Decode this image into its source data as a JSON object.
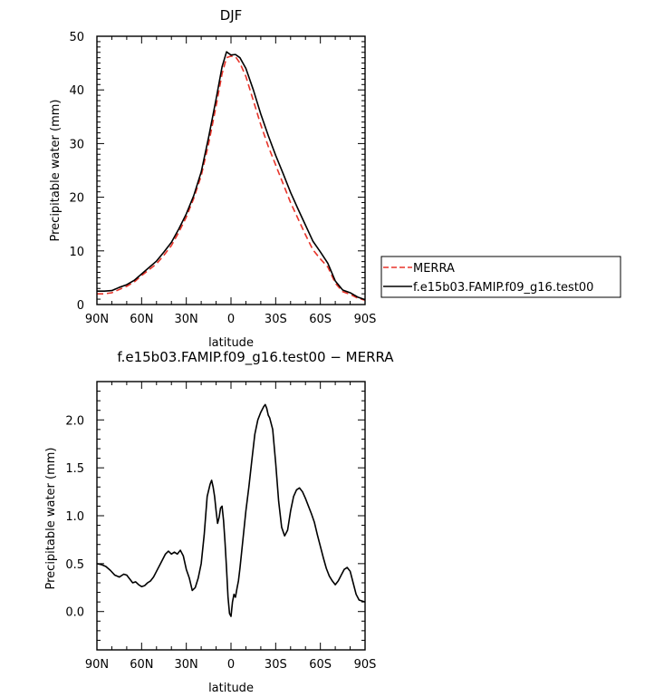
{
  "chart_data": [
    {
      "type": "line",
      "title": "DJF",
      "xlabel": "latitude",
      "ylabel": "Precipitable water (mm)",
      "x_ticks": [
        "90N",
        "60N",
        "30N",
        "0",
        "30S",
        "60S",
        "90S"
      ],
      "y_ticks": [
        "0",
        "10",
        "20",
        "30",
        "40",
        "50"
      ],
      "xlim": [
        90,
        -90
      ],
      "ylim": [
        0,
        50
      ],
      "legend_position": "right",
      "series": [
        {
          "name": "MERRA",
          "color": "#e8342a",
          "dash": "dashed",
          "x": [
            90,
            85,
            80,
            75,
            70,
            65,
            60,
            55,
            50,
            45,
            40,
            35,
            30,
            25,
            20,
            15,
            10,
            6,
            3,
            0,
            -3,
            -6,
            -10,
            -15,
            -20,
            -25,
            -30,
            -35,
            -40,
            -45,
            -50,
            -55,
            -60,
            -65,
            -70,
            -75,
            -80,
            -85,
            -90
          ],
          "y": [
            2.0,
            2.0,
            2.2,
            2.8,
            3.4,
            4.2,
            5.4,
            6.5,
            7.6,
            9.2,
            11.0,
            13.5,
            16.3,
            19.8,
            24.0,
            30.0,
            37.0,
            43.0,
            46.0,
            46.3,
            46.2,
            45.0,
            42.5,
            38.0,
            33.5,
            29.5,
            26.0,
            22.5,
            19.0,
            16.0,
            13.0,
            10.2,
            8.5,
            7.0,
            4.0,
            2.4,
            1.9,
            1.2,
            0.8
          ]
        },
        {
          "name": "f.e15b03.FAMIP.f09_g16.test00",
          "color": "#000000",
          "dash": "solid",
          "x": [
            90,
            85,
            80,
            75,
            70,
            65,
            60,
            55,
            50,
            45,
            40,
            35,
            30,
            25,
            20,
            15,
            10,
            6,
            3,
            0,
            -3,
            -6,
            -10,
            -15,
            -20,
            -25,
            -30,
            -35,
            -40,
            -45,
            -50,
            -55,
            -60,
            -65,
            -70,
            -75,
            -80,
            -85,
            -90
          ],
          "y": [
            2.5,
            2.5,
            2.6,
            3.2,
            3.7,
            4.5,
            5.7,
            6.9,
            8.1,
            9.8,
            11.6,
            14.1,
            16.9,
            20.3,
            24.7,
            31.2,
            38.3,
            44.3,
            47.1,
            46.5,
            46.6,
            46.0,
            44.0,
            40.0,
            35.5,
            31.5,
            27.8,
            24.4,
            20.9,
            17.8,
            14.8,
            11.8,
            9.8,
            7.7,
            4.4,
            2.7,
            2.2,
            1.4,
            0.9
          ]
        }
      ]
    },
    {
      "type": "line",
      "title": "f.e15b03.FAMIP.f09_g16.test00 − MERRA",
      "xlabel": "latitude",
      "ylabel": "Precipitable water (mm)",
      "x_ticks": [
        "90N",
        "60N",
        "30N",
        "0",
        "30S",
        "60S",
        "90S"
      ],
      "y_ticks": [
        "0.0",
        "0.5",
        "1.0",
        "1.5",
        "2.0"
      ],
      "xlim": [
        90,
        -90
      ],
      "ylim": [
        -0.4,
        2.4
      ],
      "series": [
        {
          "color": "#000000",
          "dash": "solid",
          "x": [
            90,
            87,
            84,
            81,
            78,
            75,
            72,
            70,
            68,
            66,
            64,
            62,
            60,
            58,
            56,
            54,
            52,
            50,
            48,
            46,
            44,
            42,
            40,
            38,
            36,
            34,
            32,
            30,
            28,
            26,
            24,
            22,
            20,
            18,
            16,
            14,
            13,
            12,
            11,
            10,
            9,
            8,
            7,
            6,
            5,
            4,
            3,
            2,
            1,
            0,
            -1,
            -2,
            -3,
            -4,
            -5,
            -6,
            -8,
            -10,
            -12,
            -14,
            -16,
            -18,
            -20,
            -22,
            -23,
            -24,
            -25,
            -26,
            -28,
            -30,
            -32,
            -34,
            -36,
            -38,
            -40,
            -42,
            -44,
            -46,
            -48,
            -50,
            -52,
            -54,
            -56,
            -58,
            -60,
            -62,
            -64,
            -66,
            -68,
            -70,
            -72,
            -74,
            -76,
            -78,
            -80,
            -82,
            -84,
            -86,
            -88,
            -90
          ],
          "y": [
            0.5,
            0.49,
            0.47,
            0.43,
            0.38,
            0.36,
            0.39,
            0.38,
            0.34,
            0.3,
            0.31,
            0.28,
            0.26,
            0.27,
            0.3,
            0.32,
            0.36,
            0.42,
            0.48,
            0.54,
            0.6,
            0.63,
            0.6,
            0.62,
            0.6,
            0.64,
            0.58,
            0.44,
            0.35,
            0.22,
            0.25,
            0.35,
            0.5,
            0.8,
            1.2,
            1.33,
            1.37,
            1.3,
            1.2,
            1.05,
            0.92,
            0.98,
            1.08,
            1.1,
            0.95,
            0.72,
            0.45,
            0.15,
            -0.02,
            -0.05,
            0.1,
            0.18,
            0.15,
            0.24,
            0.32,
            0.45,
            0.75,
            1.05,
            1.3,
            1.58,
            1.85,
            2.0,
            2.08,
            2.14,
            2.16,
            2.12,
            2.05,
            2.02,
            1.9,
            1.55,
            1.15,
            0.88,
            0.79,
            0.85,
            1.05,
            1.2,
            1.27,
            1.29,
            1.25,
            1.18,
            1.1,
            1.02,
            0.93,
            0.8,
            0.68,
            0.56,
            0.45,
            0.37,
            0.32,
            0.28,
            0.32,
            0.38,
            0.44,
            0.46,
            0.42,
            0.3,
            0.18,
            0.12,
            0.11,
            0.1
          ]
        }
      ]
    }
  ]
}
